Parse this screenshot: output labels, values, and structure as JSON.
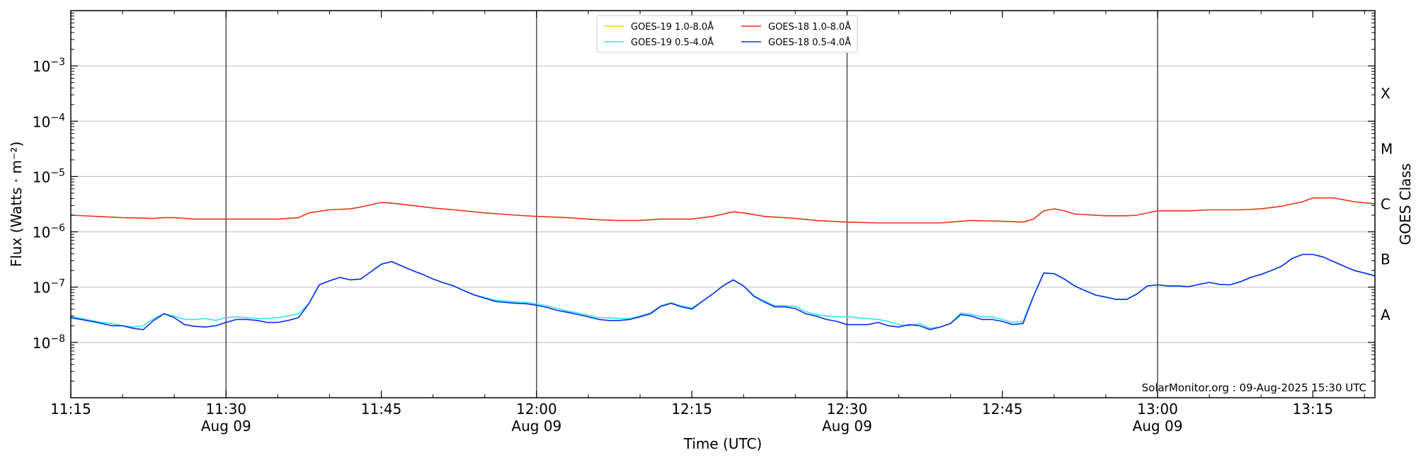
{
  "chart_data": {
    "type": "line",
    "xlabel": "Time (UTC)",
    "ylabel": "Flux (Watts · m⁻²)",
    "y2label": "GOES Class",
    "y_scale": "log",
    "ylim": [
      1e-09,
      0.01
    ],
    "xlim": [
      "11:15",
      "13:21"
    ],
    "grid": "horizontal at decades, vertical at half-hour marks",
    "legend_position": "top-center",
    "credit": "SolarMonitor.org : 09-Aug-2025 15:30 UTC",
    "x_ticks": [
      {
        "time": "11:15",
        "label": "11:15",
        "sub": ""
      },
      {
        "time": "11:30",
        "label": "11:30",
        "sub": "Aug 09"
      },
      {
        "time": "11:45",
        "label": "11:45",
        "sub": ""
      },
      {
        "time": "12:00",
        "label": "12:00",
        "sub": "Aug 09"
      },
      {
        "time": "12:15",
        "label": "12:15",
        "sub": ""
      },
      {
        "time": "12:30",
        "label": "12:30",
        "sub": "Aug 09"
      },
      {
        "time": "12:45",
        "label": "12:45",
        "sub": ""
      },
      {
        "time": "13:00",
        "label": "13:00",
        "sub": "Aug 09"
      },
      {
        "time": "13:15",
        "label": "13:15",
        "sub": ""
      }
    ],
    "y_ticks": [
      {
        "value": 1e-08,
        "base": "10",
        "exp": "−8"
      },
      {
        "value": 1e-07,
        "base": "10",
        "exp": "−7"
      },
      {
        "value": 1e-06,
        "base": "10",
        "exp": "−6"
      },
      {
        "value": 1e-05,
        "base": "10",
        "exp": "−5"
      },
      {
        "value": 0.0001,
        "base": "10",
        "exp": "−4"
      },
      {
        "value": 0.001,
        "base": "10",
        "exp": "−3"
      }
    ],
    "goes_classes": [
      {
        "label": "A",
        "value": 3.162e-08
      },
      {
        "label": "B",
        "value": 3.162e-07
      },
      {
        "label": "C",
        "value": 3.162e-06
      },
      {
        "label": "M",
        "value": 3.162e-05
      },
      {
        "label": "X",
        "value": 0.0003162
      }
    ],
    "series": [
      {
        "name": "GOES-19 1.0-8.0Å",
        "color": "#f5d30a",
        "x": [],
        "y": []
      },
      {
        "name": "GOES-18 1.0-8.0Å",
        "color": "#e8321a",
        "x": [
          "11:15",
          "11:20",
          "11:23",
          "11:24",
          "11:25",
          "11:27",
          "11:30",
          "11:32",
          "11:35",
          "11:37",
          "11:38",
          "11:40",
          "11:42",
          "11:43",
          "11:45",
          "11:46",
          "11:48",
          "11:50",
          "11:52",
          "11:55",
          "11:58",
          "12:00",
          "12:03",
          "12:06",
          "12:08",
          "12:10",
          "12:12",
          "12:14",
          "12:15",
          "12:17",
          "12:19",
          "12:20",
          "12:22",
          "12:25",
          "12:27",
          "12:30",
          "12:33",
          "12:36",
          "12:39",
          "12:40",
          "12:42",
          "12:45",
          "12:47",
          "12:48",
          "12:49",
          "12:50",
          "12:51",
          "12:52",
          "12:55",
          "12:57",
          "12:58",
          "13:00",
          "13:03",
          "13:05",
          "13:08",
          "13:10",
          "13:12",
          "13:14",
          "13:15",
          "13:17",
          "13:19",
          "13:21"
        ],
        "y": [
          2e-06,
          1.8e-06,
          1.75e-06,
          1.8e-06,
          1.8e-06,
          1.7e-06,
          1.7e-06,
          1.7e-06,
          1.7e-06,
          1.8e-06,
          2.2e-06,
          2.5e-06,
          2.6e-06,
          2.8e-06,
          3.4e-06,
          3.3e-06,
          3e-06,
          2.7e-06,
          2.5e-06,
          2.2e-06,
          2e-06,
          1.9e-06,
          1.8e-06,
          1.65e-06,
          1.6e-06,
          1.6e-06,
          1.7e-06,
          1.7e-06,
          1.7e-06,
          1.9e-06,
          2.3e-06,
          2.2e-06,
          1.9e-06,
          1.75e-06,
          1.6e-06,
          1.5e-06,
          1.45e-06,
          1.45e-06,
          1.45e-06,
          1.5e-06,
          1.6e-06,
          1.55e-06,
          1.5e-06,
          1.7e-06,
          2.4e-06,
          2.6e-06,
          2.4e-06,
          2.1e-06,
          1.95e-06,
          1.95e-06,
          2e-06,
          2.4e-06,
          2.4e-06,
          2.5e-06,
          2.5e-06,
          2.6e-06,
          2.9e-06,
          3.5e-06,
          4.1e-06,
          4.1e-06,
          3.5e-06,
          3.2e-06
        ]
      },
      {
        "name": "GOES-19 0.5-4.0Å",
        "color": "#2ee6ee",
        "x": [
          "11:15",
          "11:16",
          "11:17",
          "11:18",
          "11:19",
          "11:20",
          "11:21",
          "11:22",
          "11:23",
          "11:24",
          "11:25",
          "11:26",
          "11:27",
          "11:28",
          "11:29",
          "11:30",
          "11:31",
          "11:32",
          "11:33",
          "11:34",
          "11:35",
          "11:36",
          "11:37",
          "11:38",
          "11:39",
          "11:40",
          "11:41",
          "11:42",
          "11:43",
          "11:44",
          "11:45",
          "11:46",
          "11:47",
          "11:48",
          "11:49",
          "11:50",
          "11:51",
          "11:52",
          "11:53",
          "11:54",
          "11:55",
          "11:56",
          "11:57",
          "11:58",
          "11:59",
          "12:00",
          "12:01",
          "12:02",
          "12:03",
          "12:04",
          "12:05",
          "12:06",
          "12:07",
          "12:08",
          "12:09",
          "12:10",
          "12:11",
          "12:12",
          "12:13",
          "12:14",
          "12:15",
          "12:16",
          "12:17",
          "12:18",
          "12:19",
          "12:20",
          "12:21",
          "12:22",
          "12:23",
          "12:24",
          "12:25",
          "12:26",
          "12:27",
          "12:28",
          "12:29",
          "12:30",
          "12:31",
          "12:32",
          "12:33",
          "12:34",
          "12:35",
          "12:36",
          "12:37",
          "12:38",
          "12:39",
          "12:40",
          "12:41",
          "12:42",
          "12:43",
          "12:44",
          "12:45",
          "12:46",
          "12:47",
          "12:48",
          "12:49",
          "12:50",
          "12:51",
          "12:52",
          "12:53",
          "12:54",
          "12:55",
          "12:56",
          "12:57",
          "12:58",
          "12:59",
          "13:00",
          "13:01",
          "13:02",
          "13:03",
          "13:04",
          "13:05",
          "13:06",
          "13:07",
          "13:08",
          "13:09",
          "13:10",
          "13:11",
          "13:12",
          "13:13",
          "13:14",
          "13:15",
          "13:16",
          "13:17",
          "13:18",
          "13:19",
          "13:20",
          "13:21"
        ],
        "y": [
          2.9e-08,
          2.7e-08,
          2.5e-08,
          2.3e-08,
          2.2e-08,
          2e-08,
          1.9e-08,
          2e-08,
          2.7e-08,
          3.3e-08,
          3e-08,
          2.6e-08,
          2.6e-08,
          2.7e-08,
          2.5e-08,
          2.8e-08,
          2.9e-08,
          2.8e-08,
          2.7e-08,
          2.7e-08,
          2.8e-08,
          3e-08,
          3.3e-08,
          5e-08,
          1.1e-07,
          1.3e-07,
          1.5e-07,
          1.35e-07,
          1.4e-07,
          1.9e-07,
          2.6e-07,
          2.9e-07,
          2.4e-07,
          2e-07,
          1.7e-07,
          1.4e-07,
          1.2e-07,
          1.05e-07,
          8.6e-08,
          7.2e-08,
          6.5e-08,
          5.8e-08,
          5.6e-08,
          5.4e-08,
          5.3e-08,
          5e-08,
          4.6e-08,
          4.1e-08,
          3.7e-08,
          3.4e-08,
          3.1e-08,
          2.8e-08,
          2.8e-08,
          2.7e-08,
          2.7e-08,
          3e-08,
          3.4e-08,
          4.6e-08,
          5.2e-08,
          4.6e-08,
          4.2e-08,
          5.5e-08,
          7.5e-08,
          1.05e-07,
          1.35e-07,
          1.05e-07,
          7e-08,
          5.6e-08,
          4.6e-08,
          4.6e-08,
          4.5e-08,
          3.6e-08,
          3.2e-08,
          3e-08,
          2.9e-08,
          2.9e-08,
          2.8e-08,
          2.7e-08,
          2.6e-08,
          2.4e-08,
          2.1e-08,
          2e-08,
          2.2e-08,
          1.8e-08,
          1.9e-08,
          2.2e-08,
          3.4e-08,
          3.2e-08,
          2.9e-08,
          2.9e-08,
          2.6e-08,
          2.3e-08,
          2.4e-08,
          6.8e-08,
          1.8e-07,
          1.75e-07,
          1.4e-07,
          1.05e-07,
          8.6e-08,
          7.2e-08,
          6.6e-08,
          6e-08,
          6e-08,
          7.5e-08,
          1.05e-07,
          1.1e-07,
          1.05e-07,
          1.05e-07,
          1.02e-07,
          1.12e-07,
          1.22e-07,
          1.12e-07,
          1.1e-07,
          1.25e-07,
          1.5e-07,
          1.7e-07,
          2e-07,
          2.4e-07,
          3.3e-07,
          3.9e-07,
          3.9e-07,
          3.5e-07,
          2.9e-07,
          2.4e-07,
          2e-07,
          1.8e-07,
          1.6e-07
        ]
      },
      {
        "name": "GOES-18 0.5-4.0Å",
        "color": "#0a2ce0",
        "x": [
          "11:15",
          "11:16",
          "11:17",
          "11:18",
          "11:19",
          "11:20",
          "11:21",
          "11:22",
          "11:23",
          "11:24",
          "11:25",
          "11:26",
          "11:27",
          "11:28",
          "11:29",
          "11:30",
          "11:31",
          "11:32",
          "11:33",
          "11:34",
          "11:35",
          "11:36",
          "11:37",
          "11:38",
          "11:39",
          "11:40",
          "11:41",
          "11:42",
          "11:43",
          "11:44",
          "11:45",
          "11:46",
          "11:47",
          "11:48",
          "11:49",
          "11:50",
          "11:51",
          "11:52",
          "11:53",
          "11:54",
          "11:55",
          "11:56",
          "11:57",
          "11:58",
          "11:59",
          "12:00",
          "12:01",
          "12:02",
          "12:03",
          "12:04",
          "12:05",
          "12:06",
          "12:07",
          "12:08",
          "12:09",
          "12:10",
          "12:11",
          "12:12",
          "12:13",
          "12:14",
          "12:15",
          "12:16",
          "12:17",
          "12:18",
          "12:19",
          "12:20",
          "12:21",
          "12:22",
          "12:23",
          "12:24",
          "12:25",
          "12:26",
          "12:27",
          "12:28",
          "12:29",
          "12:30",
          "12:31",
          "12:32",
          "12:33",
          "12:34",
          "12:35",
          "12:36",
          "12:37",
          "12:38",
          "12:39",
          "12:40",
          "12:41",
          "12:42",
          "12:43",
          "12:44",
          "12:45",
          "12:46",
          "12:47",
          "12:48",
          "12:49",
          "12:50",
          "12:51",
          "12:52",
          "12:53",
          "12:54",
          "12:55",
          "12:56",
          "12:57",
          "12:58",
          "12:59",
          "13:00",
          "13:01",
          "13:02",
          "13:03",
          "13:04",
          "13:05",
          "13:06",
          "13:07",
          "13:08",
          "13:09",
          "13:10",
          "13:11",
          "13:12",
          "13:13",
          "13:14",
          "13:15",
          "13:16",
          "13:17",
          "13:18",
          "13:19",
          "13:20",
          "13:21"
        ],
        "y": [
          2.8e-08,
          2.6e-08,
          2.4e-08,
          2.2e-08,
          2e-08,
          2e-08,
          1.8e-08,
          1.7e-08,
          2.5e-08,
          3.3e-08,
          2.8e-08,
          2.1e-08,
          1.95e-08,
          1.9e-08,
          2e-08,
          2.3e-08,
          2.6e-08,
          2.6e-08,
          2.5e-08,
          2.3e-08,
          2.3e-08,
          2.5e-08,
          2.8e-08,
          5e-08,
          1.1e-07,
          1.3e-07,
          1.5e-07,
          1.35e-07,
          1.4e-07,
          1.9e-07,
          2.6e-07,
          2.9e-07,
          2.4e-07,
          2e-07,
          1.7e-07,
          1.4e-07,
          1.2e-07,
          1.05e-07,
          8.6e-08,
          7.2e-08,
          6.3e-08,
          5.5e-08,
          5.3e-08,
          5.1e-08,
          5e-08,
          4.7e-08,
          4.3e-08,
          3.8e-08,
          3.5e-08,
          3.2e-08,
          2.9e-08,
          2.6e-08,
          2.5e-08,
          2.5e-08,
          2.6e-08,
          2.9e-08,
          3.3e-08,
          4.5e-08,
          5.1e-08,
          4.4e-08,
          4e-08,
          5.5e-08,
          7.5e-08,
          1.05e-07,
          1.35e-07,
          1.05e-07,
          6.8e-08,
          5.4e-08,
          4.4e-08,
          4.4e-08,
          4.1e-08,
          3.3e-08,
          3e-08,
          2.6e-08,
          2.4e-08,
          2.1e-08,
          2.1e-08,
          2.1e-08,
          2.3e-08,
          2e-08,
          1.9e-08,
          2.1e-08,
          2e-08,
          1.7e-08,
          1.9e-08,
          2.2e-08,
          3.2e-08,
          3e-08,
          2.6e-08,
          2.6e-08,
          2.4e-08,
          2.1e-08,
          2.2e-08,
          6.8e-08,
          1.8e-07,
          1.75e-07,
          1.4e-07,
          1.05e-07,
          8.6e-08,
          7.2e-08,
          6.6e-08,
          6e-08,
          6e-08,
          7.5e-08,
          1.05e-07,
          1.1e-07,
          1.05e-07,
          1.05e-07,
          1.02e-07,
          1.12e-07,
          1.22e-07,
          1.12e-07,
          1.1e-07,
          1.25e-07,
          1.5e-07,
          1.7e-07,
          2e-07,
          2.4e-07,
          3.3e-07,
          3.9e-07,
          3.9e-07,
          3.5e-07,
          2.9e-07,
          2.4e-07,
          2e-07,
          1.8e-07,
          1.6e-07
        ]
      }
    ],
    "legend_order": [
      0,
      2,
      1,
      3
    ]
  }
}
